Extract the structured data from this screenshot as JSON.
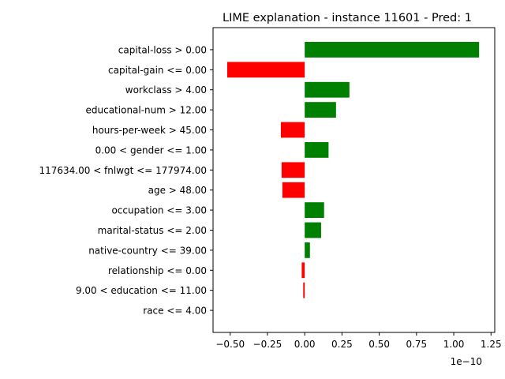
{
  "chart_data": {
    "type": "bar",
    "orientation": "horizontal",
    "title": "LIME explanation - instance 11601 - Pred: 1",
    "xlabel": "",
    "ylabel": "",
    "x_scale_label": "1e−10",
    "xlim": [
      -0.615,
      1.275
    ],
    "xticks": [
      -0.5,
      -0.25,
      0.0,
      0.25,
      0.5,
      0.75,
      1.0,
      1.25
    ],
    "xtick_labels": [
      "−0.50",
      "−0.25",
      "0.00",
      "0.25",
      "0.50",
      "0.75",
      "1.00",
      "1.25"
    ],
    "grid": false,
    "colors": {
      "positive": "#008000",
      "negative": "#ff0000"
    },
    "categories": [
      "capital-loss > 0.00",
      "capital-gain <= 0.00",
      "workclass > 4.00",
      "educational-num > 12.00",
      "hours-per-week > 45.00",
      "0.00 < gender <= 1.00",
      "117634.00 < fnlwgt <= 177974.00",
      "age > 48.00",
      "occupation <= 3.00",
      "marital-status <= 2.00",
      "native-country <= 39.00",
      "relationship <= 0.00",
      "9.00 < education <= 11.00",
      "race <= 4.00"
    ],
    "values": [
      1.17,
      -0.52,
      0.3,
      0.21,
      -0.16,
      0.16,
      -0.155,
      -0.15,
      0.13,
      0.11,
      0.035,
      -0.02,
      -0.01,
      0.0
    ]
  }
}
